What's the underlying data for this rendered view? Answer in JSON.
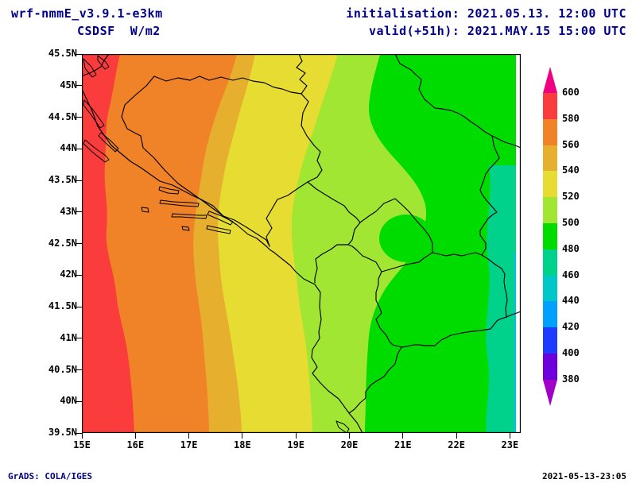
{
  "header": {
    "model": "wrf-nmmE_v3.9.1-e3km",
    "variable": "CSDSF  W/m2",
    "init_line": "initialisation: 2021.05.13. 12:00 UTC",
    "valid_line": "valid(+51h): 2021.MAY.15 15:00 UTC"
  },
  "footer": {
    "grads_credit": "GrADS: COLA/IGES",
    "timestamp": "2021-05-13-23:05"
  },
  "axes": {
    "lat_ticks": [
      "45.5N",
      "45N",
      "44.5N",
      "44N",
      "43.5N",
      "43N",
      "42.5N",
      "42N",
      "41.5N",
      "41N",
      "40.5N",
      "40N",
      "39.5N"
    ],
    "lon_ticks": [
      "15E",
      "16E",
      "17E",
      "18E",
      "19E",
      "20E",
      "21E",
      "22E",
      "23E"
    ]
  },
  "colorbar": {
    "levels": [
      "600",
      "580",
      "560",
      "540",
      "520",
      "500",
      "480",
      "460",
      "440",
      "420",
      "400",
      "380"
    ],
    "colors_top_to_bottom": [
      "#f00082",
      "#fa3c3c",
      "#f08228",
      "#e6af2d",
      "#e6dc32",
      "#a0e632",
      "#00dc00",
      "#00d28c",
      "#00c8c8",
      "#00a0ff",
      "#1e3cff",
      "#6e00dc",
      "#a000c8"
    ]
  },
  "palette": {
    "gt600": "#f00082",
    "v580_600": "#fa3c3c",
    "v560_580": "#f08228",
    "v540_560": "#e6af2d",
    "v520_540": "#e6dc32",
    "v500_520": "#a0e632",
    "v480_500": "#00dc00",
    "v460_480": "#00d28c",
    "v440_460": "#00c8c8",
    "nodata": "#ffffff",
    "border": "#000000",
    "header_text": "#00008b"
  },
  "chart_data": {
    "type": "heatmap",
    "title": "CSDSF W/m2",
    "model": "wrf-nmmE_v3.9.1-e3km",
    "initialisation": "2021.05.13. 12:00 UTC",
    "valid": "2021.MAY.15 15:00 UTC (+51h)",
    "units": "W/m2",
    "lon_range": [
      15.0,
      23.2
    ],
    "lat_range": [
      39.5,
      45.5
    ],
    "contour_levels": [
      380,
      400,
      420,
      440,
      460,
      480,
      500,
      520,
      540,
      560,
      580,
      600
    ],
    "palette_low_to_high": [
      "#a000c8",
      "#6e00dc",
      "#1e3cff",
      "#00a0ff",
      "#00c8c8",
      "#00d28c",
      "#00dc00",
      "#a0e632",
      "#e6dc32",
      "#e6af2d",
      "#f08228",
      "#fa3c3c",
      "#f00082"
    ],
    "legend_position": "right",
    "grid": "lat-lon ticks, 0.5 deg lat / 1 deg lon",
    "field_summary": "Clear-sky downward shortwave flux decreasing from west to east: >=580-600 W/m2 band along the Adriatic (west edge), orange 560-580 over coastal Croatia/Bosnia, yellow 520-560 over central Bosnia/Montenegro, yellow-green 500-520 over western Serbia/Kosovo/Albania, green 480-500 over eastern Serbia/Macedonia, small 460-480 patches near the eastern edge",
    "approx_values_by_lon": [
      {
        "lon": 15.0,
        "value": 600
      },
      {
        "lon": 15.5,
        "value": 585
      },
      {
        "lon": 16.0,
        "value": 575
      },
      {
        "lon": 17.0,
        "value": 558
      },
      {
        "lon": 18.0,
        "value": 542
      },
      {
        "lon": 19.0,
        "value": 528
      },
      {
        "lon": 19.8,
        "value": 515
      },
      {
        "lon": 20.6,
        "value": 505
      },
      {
        "lon": 21.5,
        "value": 495
      },
      {
        "lon": 22.5,
        "value": 488
      },
      {
        "lon": 23.2,
        "value": 472
      }
    ]
  }
}
